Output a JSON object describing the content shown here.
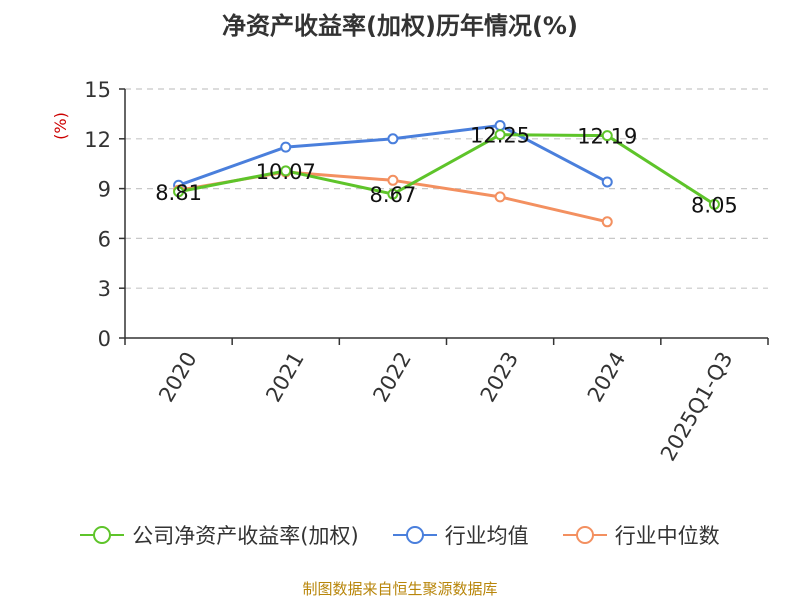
{
  "chart_data": {
    "type": "line",
    "title": "净资产收益率(加权)历年情况(%)",
    "ylabel": "(%)",
    "xlabel": "",
    "categories": [
      "2020",
      "2021",
      "2022",
      "2023",
      "2024",
      "2025Q1-Q3"
    ],
    "ylim": [
      0,
      15
    ],
    "yticks": [
      0,
      3,
      6,
      9,
      12,
      15
    ],
    "grid": true,
    "legend_position": "bottom",
    "series": [
      {
        "name": "公司净资产收益率(加权)",
        "color": "#5ec42a",
        "values": [
          8.81,
          10.07,
          8.67,
          12.25,
          12.19,
          8.05
        ],
        "show_labels": true
      },
      {
        "name": "行业均值",
        "color": "#4a7fdc",
        "values": [
          9.2,
          11.5,
          12.0,
          12.8,
          9.4,
          null
        ],
        "show_labels": false
      },
      {
        "name": "行业中位数",
        "color": "#f39060",
        "values": [
          8.9,
          10.0,
          9.5,
          8.5,
          7.0,
          null
        ],
        "show_labels": false
      }
    ],
    "source_note": "制图数据来自恒生聚源数据库"
  }
}
